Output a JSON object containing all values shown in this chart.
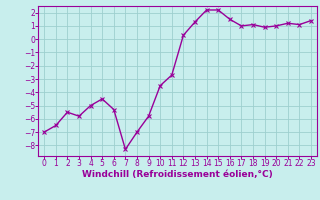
{
  "x": [
    0,
    1,
    2,
    3,
    4,
    5,
    6,
    7,
    8,
    9,
    10,
    11,
    12,
    13,
    14,
    15,
    16,
    17,
    18,
    19,
    20,
    21,
    22,
    23
  ],
  "y": [
    -7.0,
    -6.5,
    -5.5,
    -5.8,
    -5.0,
    -4.5,
    -5.3,
    -8.3,
    -7.0,
    -5.8,
    -3.5,
    -2.7,
    0.3,
    1.3,
    2.2,
    2.2,
    1.5,
    1.0,
    1.1,
    0.9,
    1.0,
    1.2,
    1.1,
    1.4
  ],
  "line_color": "#990099",
  "bg_color": "#c8eeed",
  "grid_color": "#9ecfcf",
  "xlabel": "Windchill (Refroidissement éolien,°C)",
  "ylim": [
    -8.8,
    2.5
  ],
  "xlim": [
    -0.5,
    23.5
  ],
  "yticks": [
    -8,
    -7,
    -6,
    -5,
    -4,
    -3,
    -2,
    -1,
    0,
    1,
    2
  ],
  "xticks": [
    0,
    1,
    2,
    3,
    4,
    5,
    6,
    7,
    8,
    9,
    10,
    11,
    12,
    13,
    14,
    15,
    16,
    17,
    18,
    19,
    20,
    21,
    22,
    23
  ],
  "marker_size": 2.5,
  "line_width": 1.0,
  "xlabel_fontsize": 6.5,
  "tick_fontsize": 5.5
}
